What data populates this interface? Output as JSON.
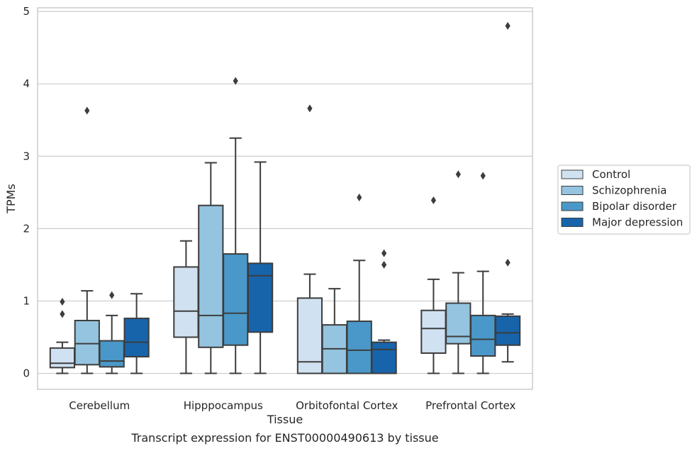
{
  "chart_data": {
    "type": "box",
    "title": "Transcript expression for ENST00000490613 by tissue",
    "xlabel": "Tissue",
    "ylabel": "TPMs",
    "ylim": [
      -0.22,
      5.05
    ],
    "yticks": [
      0,
      1,
      2,
      3,
      4,
      5
    ],
    "grid": true,
    "legend_position": "right",
    "categories": [
      "Cerebellum",
      "Hipppocampus",
      "Orbitofontal Cortex",
      "Prefrontal Cortex"
    ],
    "series": [
      {
        "name": "Control",
        "color": "#d0e1f2",
        "boxes": [
          {
            "whislo": 0.0,
            "q1": 0.08,
            "med": 0.14,
            "q3": 0.35,
            "whishi": 0.43,
            "fliers": [
              0.82,
              0.99
            ]
          },
          {
            "whislo": 0.0,
            "q1": 0.5,
            "med": 0.86,
            "q3": 1.47,
            "whishi": 1.83,
            "fliers": []
          },
          {
            "whislo": 0.0,
            "q1": 0.0,
            "med": 0.16,
            "q3": 1.04,
            "whishi": 1.37,
            "fliers": [
              3.66
            ]
          },
          {
            "whislo": 0.0,
            "q1": 0.28,
            "med": 0.62,
            "q3": 0.87,
            "whishi": 1.3,
            "fliers": [
              2.39
            ]
          }
        ]
      },
      {
        "name": "Schizophrenia",
        "color": "#94c4df",
        "boxes": [
          {
            "whislo": 0.0,
            "q1": 0.12,
            "med": 0.41,
            "q3": 0.73,
            "whishi": 1.14,
            "fliers": [
              3.63
            ]
          },
          {
            "whislo": 0.0,
            "q1": 0.36,
            "med": 0.8,
            "q3": 2.32,
            "whishi": 2.91,
            "fliers": []
          },
          {
            "whislo": 0.0,
            "q1": 0.0,
            "med": 0.34,
            "q3": 0.67,
            "whishi": 1.17,
            "fliers": []
          },
          {
            "whislo": 0.0,
            "q1": 0.41,
            "med": 0.51,
            "q3": 0.97,
            "whishi": 1.39,
            "fliers": [
              2.75
            ]
          }
        ]
      },
      {
        "name": "Bipolar disorder",
        "color": "#4a98c9",
        "boxes": [
          {
            "whislo": 0.0,
            "q1": 0.09,
            "med": 0.17,
            "q3": 0.45,
            "whishi": 0.8,
            "fliers": [
              1.08
            ]
          },
          {
            "whislo": 0.0,
            "q1": 0.39,
            "med": 0.83,
            "q3": 1.65,
            "whishi": 3.25,
            "fliers": [
              4.04
            ]
          },
          {
            "whislo": 0.0,
            "q1": 0.0,
            "med": 0.32,
            "q3": 0.72,
            "whishi": 1.56,
            "fliers": [
              2.43
            ]
          },
          {
            "whislo": 0.0,
            "q1": 0.24,
            "med": 0.47,
            "q3": 0.8,
            "whishi": 1.41,
            "fliers": [
              2.73
            ]
          }
        ]
      },
      {
        "name": "Major depression",
        "color": "#1764ab",
        "boxes": [
          {
            "whislo": 0.0,
            "q1": 0.23,
            "med": 0.43,
            "q3": 0.76,
            "whishi": 1.1,
            "fliers": []
          },
          {
            "whislo": 0.0,
            "q1": 0.57,
            "med": 1.35,
            "q3": 1.52,
            "whishi": 2.92,
            "fliers": []
          },
          {
            "whislo": 0.0,
            "q1": 0.0,
            "med": 0.33,
            "q3": 0.43,
            "whishi": 0.46,
            "fliers": [
              1.5,
              1.66
            ]
          },
          {
            "whislo": 0.16,
            "q1": 0.39,
            "med": 0.56,
            "q3": 0.79,
            "whishi": 0.82,
            "fliers": [
              1.53,
              4.8
            ]
          }
        ]
      }
    ]
  }
}
